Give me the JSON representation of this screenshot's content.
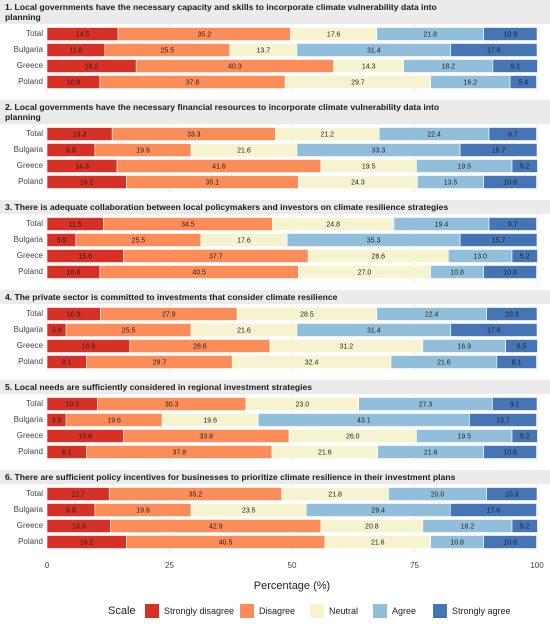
{
  "chart_data": {
    "type": "bar",
    "orientation": "horizontal",
    "stacked": true,
    "xlabel": "Percentage (%)",
    "xlim": [
      0,
      100
    ],
    "xticks": [
      0,
      25,
      50,
      75,
      100
    ],
    "grid": true,
    "legend_title": "Scale",
    "legend_position": "bottom",
    "series": [
      {
        "name": "Strongly disagree",
        "color": "#d73027"
      },
      {
        "name": "Disagree",
        "color": "#fc8d59"
      },
      {
        "name": "Neutral",
        "color": "#f6f3d1"
      },
      {
        "name": "Agree",
        "color": "#91bfdb"
      },
      {
        "name": "Strongly agree",
        "color": "#4575b4"
      }
    ],
    "panels": [
      {
        "title": "1. Local governments have the necessary capacity and skills to incorporate climate vulnerability data into planning",
        "categories": [
          "Total",
          "Bulgaria",
          "Greece",
          "Poland"
        ],
        "values": [
          [
            14.5,
            35.2,
            17.6,
            21.8,
            10.9
          ],
          [
            11.8,
            25.5,
            13.7,
            31.4,
            17.6
          ],
          [
            18.2,
            40.3,
            14.3,
            18.2,
            9.1
          ],
          [
            10.8,
            37.8,
            29.7,
            16.2,
            5.4
          ]
        ],
        "value_labels": [
          [
            "14.5",
            "35.2",
            "17.6",
            "21.8",
            "10.9"
          ],
          [
            "11.8",
            "25.5",
            "13.7",
            "31.4",
            "17.6"
          ],
          [
            "18.2",
            "40.3",
            "14.3",
            "18.2",
            "9.1"
          ],
          [
            "10.8",
            "37.8",
            "29.7",
            "16.2",
            "5.4"
          ]
        ]
      },
      {
        "title": "2. Local governments have the necessary financial resources to incorporate climate vulnerability data into planning",
        "categories": [
          "Total",
          "Bulgaria",
          "Greece",
          "Poland"
        ],
        "values": [
          [
            13.3,
            33.3,
            21.2,
            22.4,
            9.7
          ],
          [
            9.8,
            19.6,
            21.6,
            33.3,
            15.7
          ],
          [
            14.3,
            41.6,
            19.5,
            19.5,
            5.2
          ],
          [
            16.2,
            35.1,
            24.3,
            13.5,
            10.8
          ]
        ],
        "value_labels": [
          [
            "13.3",
            "33.3",
            "21.2",
            "22.4",
            "9.7"
          ],
          [
            "9.8",
            "19.6",
            "21.6",
            "33.3",
            "15.7"
          ],
          [
            "14.3",
            "41.6",
            "19.5",
            "19.5",
            "5.2"
          ],
          [
            "16.2",
            "35.1",
            "24.3",
            "13.5",
            "10.8"
          ]
        ]
      },
      {
        "title": "3. There is adequate collaboration between local policymakers and investors on climate resilience strategies",
        "categories": [
          "Total",
          "Bulgaria",
          "Greece",
          "Poland"
        ],
        "values": [
          [
            11.5,
            34.5,
            24.8,
            19.4,
            9.7
          ],
          [
            5.9,
            25.5,
            17.6,
            35.3,
            15.7
          ],
          [
            15.6,
            37.7,
            28.6,
            13.0,
            5.2
          ],
          [
            10.8,
            40.5,
            27.0,
            10.8,
            10.8
          ]
        ],
        "value_labels": [
          [
            "11.5",
            "34.5",
            "24.8",
            "19.4",
            "9.7"
          ],
          [
            "5.9",
            "25.5",
            "17.6",
            "35.3",
            "15.7"
          ],
          [
            "15.6",
            "37.7",
            "28.6",
            "13.0",
            "5.2"
          ],
          [
            "10.8",
            "40.5",
            "27.0",
            "10.8",
            "10.8"
          ]
        ]
      },
      {
        "title": "4. The private sector is committed to investments that consider climate resilience",
        "categories": [
          "Total",
          "Bulgaria",
          "Greece",
          "Poland"
        ],
        "values": [
          [
            10.9,
            27.9,
            28.5,
            22.4,
            10.3
          ],
          [
            3.9,
            25.5,
            21.6,
            31.4,
            17.6
          ],
          [
            16.9,
            28.6,
            31.2,
            16.9,
            6.5
          ],
          [
            8.1,
            29.7,
            32.4,
            21.6,
            8.1
          ]
        ],
        "value_labels": [
          [
            "10.9",
            "27.9",
            "28.5",
            "22.4",
            "10.3"
          ],
          [
            "3.9",
            "25.5",
            "21.6",
            "31.4",
            "17.6"
          ],
          [
            "16.9",
            "28.6",
            "31.2",
            "16.9",
            "6.5"
          ],
          [
            "8.1",
            "29.7",
            "32.4",
            "21.6",
            "8.1"
          ]
        ]
      },
      {
        "title": "5. Local needs are sufficiently considered in regional investment strategies",
        "categories": [
          "Total",
          "Bulgaria",
          "Greece",
          "Poland"
        ],
        "values": [
          [
            10.3,
            30.3,
            23.0,
            27.3,
            9.1
          ],
          [
            3.9,
            19.6,
            19.6,
            43.1,
            13.7
          ],
          [
            15.6,
            33.8,
            26.0,
            19.5,
            5.2
          ],
          [
            8.1,
            37.8,
            21.6,
            21.6,
            10.8
          ]
        ],
        "value_labels": [
          [
            "10.3",
            "30.3",
            "23.0",
            "27.3",
            "9.1"
          ],
          [
            "3.9",
            "19.6",
            "19.6",
            "43.1",
            "13.7"
          ],
          [
            "15.6",
            "33.8",
            "26.0",
            "19.5",
            "5.2"
          ],
          [
            "8.1",
            "37.8",
            "21.6",
            "21.6",
            "10.8"
          ]
        ]
      },
      {
        "title": "6. There are sufficient policy incentives for businesses to prioritize climate resilience in their investment plans",
        "categories": [
          "Total",
          "Bulgaria",
          "Greece",
          "Poland"
        ],
        "values": [
          [
            12.7,
            35.2,
            21.8,
            20.0,
            10.3
          ],
          [
            9.8,
            19.6,
            23.5,
            29.4,
            17.6
          ],
          [
            13.0,
            42.9,
            20.8,
            18.2,
            5.2
          ],
          [
            16.2,
            40.5,
            21.6,
            10.8,
            10.8
          ]
        ],
        "value_labels": [
          [
            "12.7",
            "35.2",
            "21.8",
            "20.0",
            "10.3"
          ],
          [
            "9.8",
            "19.6",
            "23.5",
            "29.4",
            "17.6"
          ],
          [
            "13.0",
            "42.9",
            "20.8",
            "18.2",
            "5.2"
          ],
          [
            "16.2",
            "40.5",
            "21.6",
            "10.8",
            "10.8"
          ]
        ]
      }
    ]
  }
}
